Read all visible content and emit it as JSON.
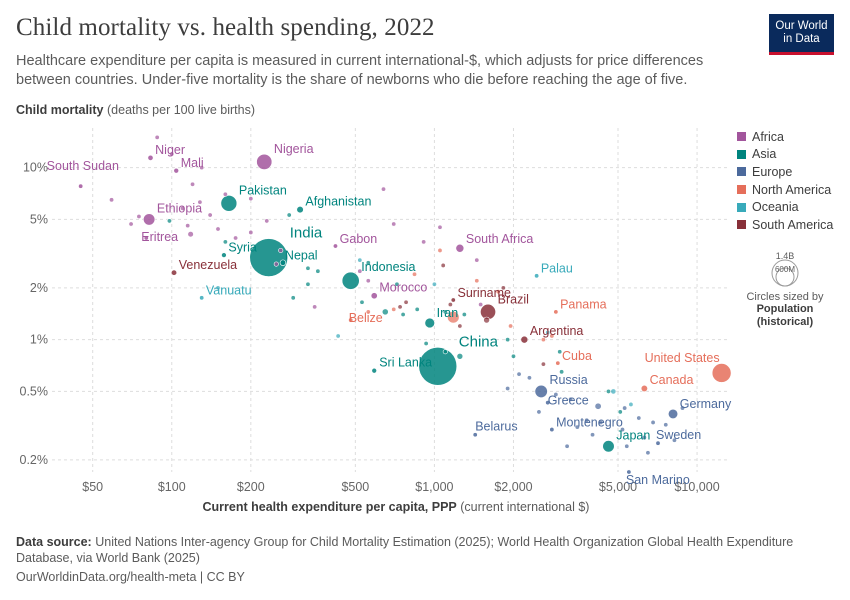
{
  "header": {
    "title": "Child mortality vs. health spending, 2022",
    "subtitle": "Healthcare expenditure per capita is measured in current international-$, which adjusts for price differences between countries. Under-five mortality is the share of newborns who die before reaching the age of five.",
    "logo_line1": "Our World",
    "logo_line2": "in Data"
  },
  "footer": {
    "source_label": "Data source:",
    "source_text": "United Nations Inter-agency Group for Child Mortality Estimation (2025); World Health Organization Global Health Expenditure Database, via World Bank (2025)",
    "url": "OurWorldinData.org/health-meta | CC BY"
  },
  "size_legend": {
    "big": "1.4B",
    "small": "600M",
    "caption1": "Circles sized by",
    "caption2": "Population",
    "caption3": "(historical)"
  },
  "chart_data": {
    "type": "scatter",
    "title": "Child mortality vs. health spending, 2022",
    "ylabel_bold": "Child mortality",
    "ylabel_rest": "(deaths per 100 live births)",
    "xlabel_bold": "Current health expenditure per capita, PPP",
    "xlabel_rest": "(current international $)",
    "x_scale": "log",
    "y_scale": "log",
    "xlim": [
      35,
      13000
    ],
    "ylim": [
      0.17,
      17
    ],
    "x_ticks": [
      {
        "v": 50,
        "l": "$50"
      },
      {
        "v": 100,
        "l": "$100"
      },
      {
        "v": 200,
        "l": "$200"
      },
      {
        "v": 500,
        "l": "$500"
      },
      {
        "v": 1000,
        "l": "$1,000"
      },
      {
        "v": 2000,
        "l": "$2,000"
      },
      {
        "v": 5000,
        "l": "$5,000"
      },
      {
        "v": 10000,
        "l": "$10,000"
      }
    ],
    "y_ticks": [
      {
        "v": 0.2,
        "l": "0.2%"
      },
      {
        "v": 0.5,
        "l": "0.5%"
      },
      {
        "v": 1,
        "l": "1%"
      },
      {
        "v": 2,
        "l": "2%"
      },
      {
        "v": 5,
        "l": "5%"
      },
      {
        "v": 10,
        "l": "10%"
      }
    ],
    "grid": true,
    "legend_position": "right",
    "colors": {
      "Africa": "#a2559c",
      "Asia": "#00847e",
      "Europe": "#4c6a9c",
      "North America": "#e56e5a",
      "Oceania": "#38aaba",
      "South America": "#883039"
    },
    "regions": [
      "Africa",
      "Asia",
      "Europe",
      "North America",
      "Oceania",
      "South America"
    ],
    "labeled": [
      {
        "name": "South Sudan",
        "region": "Africa",
        "x": 45,
        "y": 7.8,
        "pop": 11
      },
      {
        "name": "Niger",
        "region": "Africa",
        "x": 83,
        "y": 11.4,
        "pop": 26
      },
      {
        "name": "Mali",
        "region": "Africa",
        "x": 104,
        "y": 9.6,
        "pop": 23
      },
      {
        "name": "Nigeria",
        "region": "Africa",
        "x": 225,
        "y": 10.8,
        "pop": 218
      },
      {
        "name": "Ethiopia",
        "region": "Africa",
        "x": 82,
        "y": 5,
        "pop": 123
      },
      {
        "name": "Eritrea",
        "region": "Africa",
        "x": 80,
        "y": 3.9,
        "pop": 3.7
      },
      {
        "name": "Gabon",
        "region": "Africa",
        "x": 420,
        "y": 3.5,
        "pop": 2.4
      },
      {
        "name": "South Africa",
        "region": "Africa",
        "x": 1250,
        "y": 3.4,
        "pop": 60
      },
      {
        "name": "Morocco",
        "region": "Africa",
        "x": 590,
        "y": 1.8,
        "pop": 37
      },
      {
        "name": "Pakistan",
        "region": "Asia",
        "x": 165,
        "y": 6.2,
        "pop": 236
      },
      {
        "name": "Afghanistan",
        "region": "Asia",
        "x": 308,
        "y": 5.7,
        "pop": 41
      },
      {
        "name": "Syria",
        "region": "Asia",
        "x": 158,
        "y": 3.1,
        "pop": 22
      },
      {
        "name": "India",
        "region": "Asia",
        "x": 234,
        "y": 3.0,
        "pop": 1420
      },
      {
        "name": "Nepal",
        "region": "Asia",
        "x": 265,
        "y": 2.8,
        "pop": 30
      },
      {
        "name": "Indonesia",
        "region": "Asia",
        "x": 480,
        "y": 2.2,
        "pop": 275
      },
      {
        "name": "Iran",
        "region": "Asia",
        "x": 960,
        "y": 1.25,
        "pop": 89
      },
      {
        "name": "China",
        "region": "Asia",
        "x": 1030,
        "y": 0.7,
        "pop": 1410
      },
      {
        "name": "Sri Lanka",
        "region": "Asia",
        "x": 590,
        "y": 0.66,
        "pop": 22
      },
      {
        "name": "Japan",
        "region": "Asia",
        "x": 4600,
        "y": 0.24,
        "pop": 124
      },
      {
        "name": "Russia",
        "region": "Europe",
        "x": 2550,
        "y": 0.5,
        "pop": 145
      },
      {
        "name": "Greece",
        "region": "Europe",
        "x": 2700,
        "y": 0.43,
        "pop": 10
      },
      {
        "name": "Belarus",
        "region": "Europe",
        "x": 1430,
        "y": 0.28,
        "pop": 9
      },
      {
        "name": "Montenegro",
        "region": "Europe",
        "x": 2800,
        "y": 0.3,
        "pop": 0.6
      },
      {
        "name": "Germany",
        "region": "Europe",
        "x": 8100,
        "y": 0.37,
        "pop": 84
      },
      {
        "name": "Sweden",
        "region": "Europe",
        "x": 7100,
        "y": 0.25,
        "pop": 10.5
      },
      {
        "name": "San Marino",
        "region": "Europe",
        "x": 5500,
        "y": 0.17,
        "pop": 0.03
      },
      {
        "name": "United States",
        "region": "North America",
        "x": 12400,
        "y": 0.64,
        "pop": 333
      },
      {
        "name": "Canada",
        "region": "North America",
        "x": 6300,
        "y": 0.52,
        "pop": 39
      },
      {
        "name": "Panama",
        "region": "North America",
        "x": 2900,
        "y": 1.45,
        "pop": 4.4
      },
      {
        "name": "Belize",
        "region": "North America",
        "x": 480,
        "y": 1.3,
        "pop": 0.4
      },
      {
        "name": "Cuba",
        "region": "North America",
        "x": 2950,
        "y": 0.73,
        "pop": 11
      },
      {
        "name": "Vanuatu",
        "region": "Oceania",
        "x": 130,
        "y": 1.75,
        "pop": 0.3
      },
      {
        "name": "Palau",
        "region": "Oceania",
        "x": 2450,
        "y": 2.35,
        "pop": 0.02
      },
      {
        "name": "Venezuela",
        "region": "South America",
        "x": 102,
        "y": 2.45,
        "pop": 28
      },
      {
        "name": "Suriname",
        "region": "South America",
        "x": 1180,
        "y": 1.7,
        "pop": 0.6
      },
      {
        "name": "Brazil",
        "region": "South America",
        "x": 1600,
        "y": 1.45,
        "pop": 215
      },
      {
        "name": "Argentina",
        "region": "South America",
        "x": 2200,
        "y": 1.0,
        "pop": 46
      }
    ],
    "other_points": [
      {
        "region": "Africa",
        "x": 88,
        "y": 15,
        "pop": 4
      },
      {
        "region": "Africa",
        "x": 100,
        "y": 12,
        "pop": 3
      },
      {
        "region": "Africa",
        "x": 130,
        "y": 10,
        "pop": 6
      },
      {
        "region": "Africa",
        "x": 59,
        "y": 6.5,
        "pop": 5
      },
      {
        "region": "Africa",
        "x": 120,
        "y": 8,
        "pop": 8
      },
      {
        "region": "Africa",
        "x": 128,
        "y": 6.3,
        "pop": 9
      },
      {
        "region": "Africa",
        "x": 160,
        "y": 7,
        "pop": 4
      },
      {
        "region": "Africa",
        "x": 75,
        "y": 5.2,
        "pop": 3
      },
      {
        "region": "Africa",
        "x": 110,
        "y": 5.8,
        "pop": 12
      },
      {
        "region": "Africa",
        "x": 115,
        "y": 4.6,
        "pop": 10
      },
      {
        "region": "Africa",
        "x": 140,
        "y": 5.3,
        "pop": 7
      },
      {
        "region": "Africa",
        "x": 150,
        "y": 4.4,
        "pop": 4
      },
      {
        "region": "Africa",
        "x": 200,
        "y": 4.2,
        "pop": 5
      },
      {
        "region": "Africa",
        "x": 70,
        "y": 4.7,
        "pop": 4
      },
      {
        "region": "Africa",
        "x": 118,
        "y": 4.1,
        "pop": 30
      },
      {
        "region": "Africa",
        "x": 230,
        "y": 4.9,
        "pop": 6
      },
      {
        "region": "Africa",
        "x": 640,
        "y": 7.5,
        "pop": 2
      },
      {
        "region": "Africa",
        "x": 700,
        "y": 4.7,
        "pop": 2
      },
      {
        "region": "Africa",
        "x": 260,
        "y": 3.3,
        "pop": 5
      },
      {
        "region": "Africa",
        "x": 350,
        "y": 1.55,
        "pop": 4
      },
      {
        "region": "Africa",
        "x": 520,
        "y": 2.5,
        "pop": 5
      },
      {
        "region": "Africa",
        "x": 560,
        "y": 2.2,
        "pop": 3
      },
      {
        "region": "Africa",
        "x": 1050,
        "y": 4.5,
        "pop": 2
      },
      {
        "region": "Africa",
        "x": 1450,
        "y": 2.9,
        "pop": 2
      },
      {
        "region": "Africa",
        "x": 910,
        "y": 3.7,
        "pop": 2
      },
      {
        "region": "Africa",
        "x": 1500,
        "y": 1.6,
        "pop": 3
      },
      {
        "region": "Africa",
        "x": 250,
        "y": 2.75,
        "pop": 4
      },
      {
        "region": "Africa",
        "x": 200,
        "y": 6.6,
        "pop": 6
      },
      {
        "region": "Africa",
        "x": 175,
        "y": 3.9,
        "pop": 3
      },
      {
        "region": "Asia",
        "x": 98,
        "y": 4.9,
        "pop": 6
      },
      {
        "region": "Asia",
        "x": 160,
        "y": 3.7,
        "pop": 4
      },
      {
        "region": "Asia",
        "x": 280,
        "y": 5.3,
        "pop": 3
      },
      {
        "region": "Asia",
        "x": 560,
        "y": 2.8,
        "pop": 3
      },
      {
        "region": "Asia",
        "x": 360,
        "y": 2.5,
        "pop": 8
      },
      {
        "region": "Asia",
        "x": 330,
        "y": 2.6,
        "pop": 7
      },
      {
        "region": "Asia",
        "x": 290,
        "y": 1.75,
        "pop": 2
      },
      {
        "region": "Asia",
        "x": 720,
        "y": 2.1,
        "pop": 3
      },
      {
        "region": "Asia",
        "x": 650,
        "y": 1.45,
        "pop": 35
      },
      {
        "region": "Asia",
        "x": 860,
        "y": 1.5,
        "pop": 3
      },
      {
        "region": "Asia",
        "x": 1100,
        "y": 1.45,
        "pop": 5
      },
      {
        "region": "Asia",
        "x": 1300,
        "y": 1.4,
        "pop": 12
      },
      {
        "region": "Asia",
        "x": 1100,
        "y": 0.85,
        "pop": 8
      },
      {
        "region": "Asia",
        "x": 1250,
        "y": 0.8,
        "pop": 33
      },
      {
        "region": "Asia",
        "x": 760,
        "y": 1.4,
        "pop": 4
      },
      {
        "region": "Asia",
        "x": 1900,
        "y": 1.0,
        "pop": 4
      },
      {
        "region": "Asia",
        "x": 2000,
        "y": 0.8,
        "pop": 3
      },
      {
        "region": "Asia",
        "x": 3050,
        "y": 0.65,
        "pop": 3
      },
      {
        "region": "Asia",
        "x": 4600,
        "y": 0.5,
        "pop": 5
      },
      {
        "region": "Asia",
        "x": 5100,
        "y": 0.38,
        "pop": 3
      },
      {
        "region": "Asia",
        "x": 3000,
        "y": 0.85,
        "pop": 4
      },
      {
        "region": "Asia",
        "x": 930,
        "y": 0.95,
        "pop": 2
      },
      {
        "region": "Asia",
        "x": 530,
        "y": 1.65,
        "pop": 3
      },
      {
        "region": "Asia",
        "x": 330,
        "y": 2.1,
        "pop": 2
      },
      {
        "region": "Europe",
        "x": 2300,
        "y": 0.6,
        "pop": 3
      },
      {
        "region": "Europe",
        "x": 2900,
        "y": 0.48,
        "pop": 6
      },
      {
        "region": "Europe",
        "x": 3300,
        "y": 0.45,
        "pop": 7
      },
      {
        "region": "Europe",
        "x": 3800,
        "y": 0.34,
        "pop": 4
      },
      {
        "region": "Europe",
        "x": 4300,
        "y": 0.33,
        "pop": 10
      },
      {
        "region": "Europe",
        "x": 4000,
        "y": 0.28,
        "pop": 2
      },
      {
        "region": "Europe",
        "x": 5300,
        "y": 0.4,
        "pop": 5
      },
      {
        "region": "Europe",
        "x": 6000,
        "y": 0.35,
        "pop": 9
      },
      {
        "region": "Europe",
        "x": 6800,
        "y": 0.33,
        "pop": 3
      },
      {
        "region": "Europe",
        "x": 7600,
        "y": 0.32,
        "pop": 5
      },
      {
        "region": "Europe",
        "x": 8800,
        "y": 0.4,
        "pop": 8
      },
      {
        "region": "Europe",
        "x": 5200,
        "y": 0.3,
        "pop": 4
      },
      {
        "region": "Europe",
        "x": 6500,
        "y": 0.22,
        "pop": 3
      },
      {
        "region": "Europe",
        "x": 5400,
        "y": 0.24,
        "pop": 2
      },
      {
        "region": "Europe",
        "x": 3500,
        "y": 0.31,
        "pop": 3
      },
      {
        "region": "Europe",
        "x": 3200,
        "y": 0.24,
        "pop": 3
      },
      {
        "region": "Europe",
        "x": 2500,
        "y": 0.38,
        "pop": 4
      },
      {
        "region": "Europe",
        "x": 1900,
        "y": 0.52,
        "pop": 3
      },
      {
        "region": "Europe",
        "x": 2100,
        "y": 0.63,
        "pop": 2
      },
      {
        "region": "Europe",
        "x": 6300,
        "y": 0.27,
        "pop": 6
      },
      {
        "region": "Europe",
        "x": 8200,
        "y": 0.26,
        "pop": 4
      },
      {
        "region": "Europe",
        "x": 4200,
        "y": 0.41,
        "pop": 38
      },
      {
        "region": "North America",
        "x": 1450,
        "y": 2.2,
        "pop": 3
      },
      {
        "region": "North America",
        "x": 1750,
        "y": 1.9,
        "pop": 4
      },
      {
        "region": "North America",
        "x": 840,
        "y": 2.4,
        "pop": 10
      },
      {
        "region": "North America",
        "x": 1050,
        "y": 3.3,
        "pop": 2
      },
      {
        "region": "North America",
        "x": 1180,
        "y": 1.35,
        "pop": 128
      },
      {
        "region": "North America",
        "x": 1950,
        "y": 1.2,
        "pop": 5
      },
      {
        "region": "North America",
        "x": 2600,
        "y": 1.0,
        "pop": 2
      },
      {
        "region": "North America",
        "x": 2800,
        "y": 1.05,
        "pop": 3
      },
      {
        "region": "North America",
        "x": 700,
        "y": 1.5,
        "pop": 2
      },
      {
        "region": "North America",
        "x": 560,
        "y": 1.45,
        "pop": 2
      },
      {
        "region": "Oceania",
        "x": 150,
        "y": 2.0,
        "pop": 2
      },
      {
        "region": "Oceania",
        "x": 430,
        "y": 1.05,
        "pop": 2
      },
      {
        "region": "Oceania",
        "x": 520,
        "y": 2.9,
        "pop": 2
      },
      {
        "region": "Oceania",
        "x": 4800,
        "y": 0.5,
        "pop": 26
      },
      {
        "region": "Oceania",
        "x": 5600,
        "y": 0.42,
        "pop": 5
      },
      {
        "region": "Oceania",
        "x": 1000,
        "y": 2.1,
        "pop": 1
      },
      {
        "region": "Oceania",
        "x": 2700,
        "y": 1.1,
        "pop": 1
      },
      {
        "region": "South America",
        "x": 1580,
        "y": 1.3,
        "pop": 34
      },
      {
        "region": "South America",
        "x": 1150,
        "y": 1.6,
        "pop": 18
      },
      {
        "region": "South America",
        "x": 780,
        "y": 1.65,
        "pop": 2
      },
      {
        "region": "South America",
        "x": 740,
        "y": 1.55,
        "pop": 12
      },
      {
        "region": "South America",
        "x": 1080,
        "y": 2.7,
        "pop": 5
      },
      {
        "region": "South America",
        "x": 1830,
        "y": 2.0,
        "pop": 3
      },
      {
        "region": "South America",
        "x": 2600,
        "y": 0.72,
        "pop": 3
      },
      {
        "region": "South America",
        "x": 1250,
        "y": 1.2,
        "pop": 7
      }
    ]
  }
}
